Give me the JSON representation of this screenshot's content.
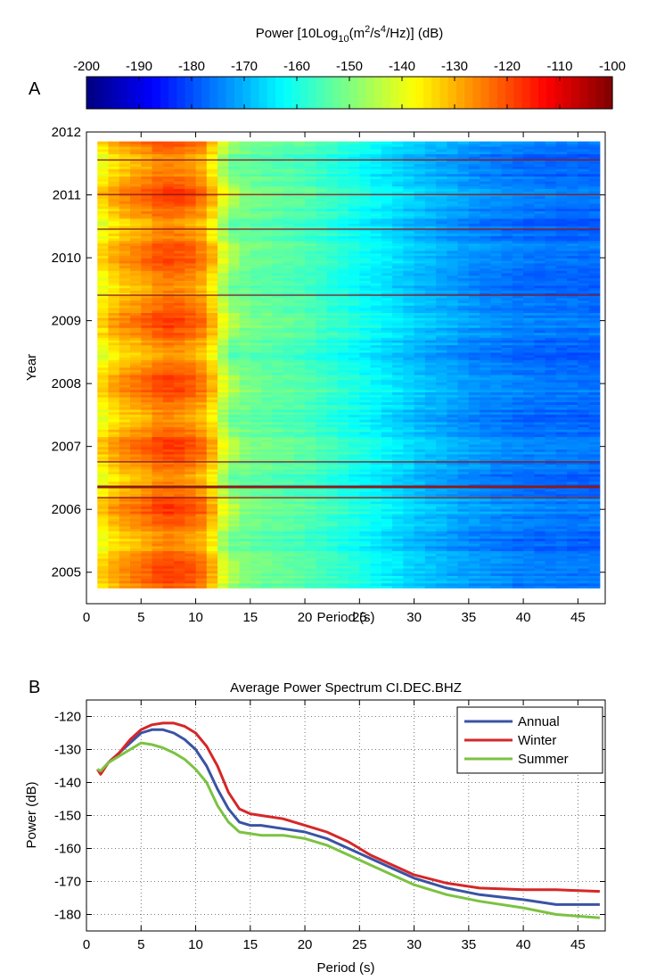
{
  "colorbar": {
    "label_main": "Power [10Log",
    "label_sub1": "10",
    "label_mid": "(m",
    "label_sup1": "2",
    "label_mid2": "/s",
    "label_sup2": "4",
    "label_end": "/Hz)] (dB)",
    "ticks": [
      "-200",
      "-190",
      "-180",
      "-170",
      "-160",
      "-150",
      "-140",
      "-130",
      "-120",
      "-110",
      "-100"
    ],
    "range": [
      -200,
      -100
    ],
    "colormap": "jet"
  },
  "chart_data": [
    {
      "panel_label": "A",
      "type": "heatmap",
      "title": "",
      "xlabel": "Period (s)",
      "ylabel": "Year",
      "xlim": [
        0,
        47.5
      ],
      "ylim": [
        2004.5,
        2012
      ],
      "x_ticks": [
        "0",
        "5",
        "10",
        "15",
        "20",
        "25",
        "30",
        "35",
        "40",
        "45"
      ],
      "y_ticks": [
        "2005",
        "2006",
        "2007",
        "2008",
        "2009",
        "2010",
        "2011",
        "2012"
      ],
      "x": [
        1,
        47
      ],
      "y": [
        2004.75,
        2011.85
      ],
      "color_scale": [
        -200,
        -100
      ],
      "description_of_values": [
        {
          "period": 1,
          "power": -138
        },
        {
          "period": 3,
          "power": -130
        },
        {
          "period": 5,
          "power": -127
        },
        {
          "period": 7,
          "power": -122
        },
        {
          "period": 9,
          "power": -123
        },
        {
          "period": 11,
          "power": -128
        },
        {
          "period": 13,
          "power": -148
        },
        {
          "period": 15,
          "power": -152
        },
        {
          "period": 20,
          "power": -155
        },
        {
          "period": 25,
          "power": -161
        },
        {
          "period": 30,
          "power": -168
        },
        {
          "period": 35,
          "power": -173
        },
        {
          "period": 40,
          "power": -176
        },
        {
          "period": 47,
          "power": -177
        }
      ],
      "bright_lines_years": [
        2006.35,
        2006.18,
        2011.55,
        2011.0,
        2010.45,
        2009.4,
        2006.75
      ]
    },
    {
      "panel_label": "B",
      "type": "line",
      "title": "Average Power Spectrum CI.DEC.BHZ",
      "xlabel": "Period (s)",
      "ylabel": "Power (dB)",
      "xlim": [
        0,
        47.5
      ],
      "ylim": [
        -185,
        -115
      ],
      "x_ticks": [
        "0",
        "5",
        "10",
        "15",
        "20",
        "25",
        "30",
        "35",
        "40",
        "45"
      ],
      "y_ticks": [
        "-120",
        "-130",
        "-140",
        "-150",
        "-160",
        "-170",
        "-180"
      ],
      "grid": true,
      "legend_position": "top-right",
      "series": [
        {
          "name": "Annual",
          "color": "#3a53a4",
          "x": [
            1,
            1.3,
            2,
            3,
            4,
            5,
            6,
            7,
            8,
            9,
            10,
            11,
            12,
            13,
            14,
            15,
            16,
            18,
            20,
            22,
            24,
            26,
            28,
            30,
            33,
            36,
            40,
            43,
            47
          ],
          "y": [
            -136,
            -137,
            -134,
            -131,
            -128,
            -125,
            -124,
            -124,
            -125,
            -127,
            -130,
            -135,
            -142,
            -148,
            -152,
            -153,
            -153,
            -154,
            -155,
            -157,
            -160,
            -163,
            -166,
            -169,
            -172,
            -174,
            -175.5,
            -177,
            -177
          ]
        },
        {
          "name": "Winter",
          "color": "#d62728",
          "x": [
            1,
            1.3,
            2,
            3,
            4,
            5,
            6,
            7,
            8,
            9,
            10,
            11,
            12,
            13,
            14,
            15,
            16,
            18,
            20,
            22,
            24,
            26,
            28,
            30,
            33,
            36,
            40,
            43,
            47
          ],
          "y": [
            -136,
            -137.5,
            -134,
            -131,
            -127,
            -124,
            -122.5,
            -122,
            -122,
            -123,
            -125,
            -129,
            -135,
            -143,
            -148,
            -149.5,
            -150,
            -151,
            -153,
            -155,
            -158,
            -162,
            -165,
            -168,
            -170.5,
            -172,
            -172.5,
            -172.5,
            -173
          ]
        },
        {
          "name": "Summer",
          "color": "#7cc242",
          "x": [
            1,
            1.3,
            2,
            3,
            4,
            5,
            6,
            7,
            8,
            9,
            10,
            11,
            12,
            13,
            14,
            15,
            16,
            18,
            20,
            22,
            24,
            26,
            28,
            30,
            33,
            36,
            40,
            43,
            47
          ],
          "y": [
            -136,
            -136.5,
            -134,
            -132,
            -130,
            -128,
            -128.5,
            -129.5,
            -131,
            -133,
            -136,
            -140,
            -147,
            -152,
            -155,
            -155.5,
            -156,
            -156,
            -157,
            -159,
            -162,
            -165,
            -168,
            -171,
            -174,
            -176,
            -178,
            -180,
            -181
          ]
        }
      ]
    }
  ]
}
